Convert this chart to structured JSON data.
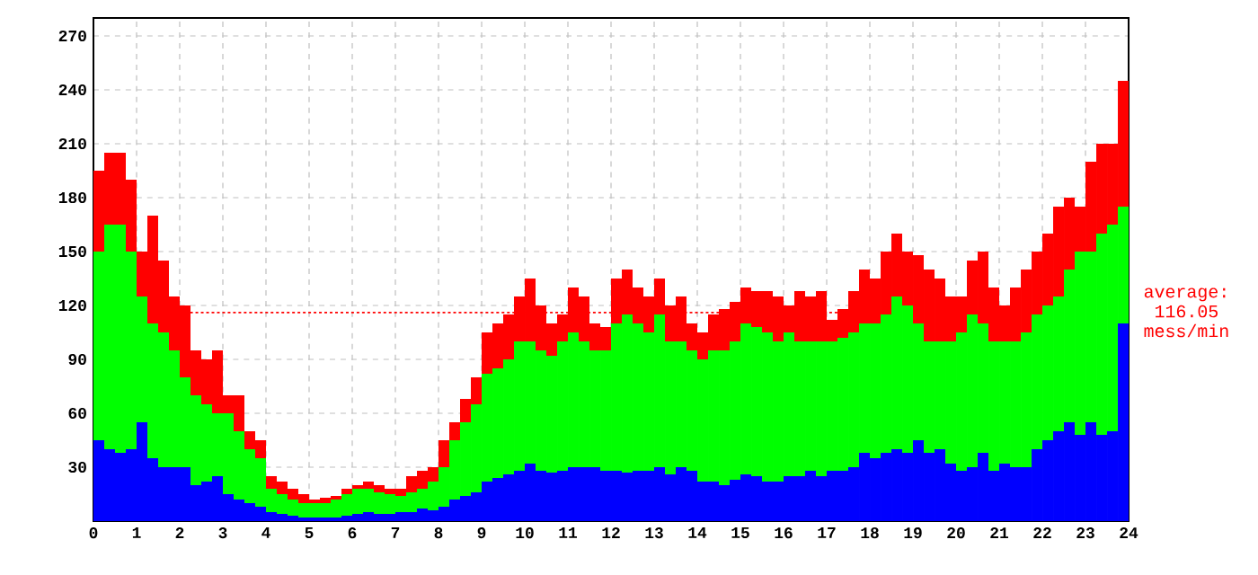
{
  "chart_data": {
    "type": "bar",
    "stacked": true,
    "x": [
      0.125,
      0.375,
      0.625,
      0.875,
      1.125,
      1.375,
      1.625,
      1.875,
      2.125,
      2.375,
      2.625,
      2.875,
      3.125,
      3.375,
      3.625,
      3.875,
      4.125,
      4.375,
      4.625,
      4.875,
      5.125,
      5.375,
      5.625,
      5.875,
      6.125,
      6.375,
      6.625,
      6.875,
      7.125,
      7.375,
      7.625,
      7.875,
      8.125,
      8.375,
      8.625,
      8.875,
      9.125,
      9.375,
      9.625,
      9.875,
      10.125,
      10.375,
      10.625,
      10.875,
      11.125,
      11.375,
      11.625,
      11.875,
      12.125,
      12.375,
      12.625,
      12.875,
      13.125,
      13.375,
      13.625,
      13.875,
      14.125,
      14.375,
      14.625,
      14.875,
      15.125,
      15.375,
      15.625,
      15.875,
      16.125,
      16.375,
      16.625,
      16.875,
      17.125,
      17.375,
      17.625,
      17.875,
      18.125,
      18.375,
      18.625,
      18.875,
      19.125,
      19.375,
      19.625,
      19.875,
      20.125,
      20.375,
      20.625,
      20.875,
      21.125,
      21.375,
      21.625,
      21.875,
      22.125,
      22.375,
      22.625,
      22.875,
      23.125,
      23.375,
      23.625,
      23.875
    ],
    "series": [
      {
        "color": "#0000ff",
        "values": [
          45,
          40,
          38,
          40,
          55,
          35,
          30,
          30,
          30,
          20,
          22,
          25,
          15,
          12,
          10,
          8,
          5,
          4,
          3,
          2,
          2,
          2,
          2,
          3,
          4,
          5,
          4,
          4,
          5,
          5,
          7,
          6,
          8,
          12,
          14,
          16,
          22,
          24,
          26,
          28,
          32,
          28,
          27,
          28,
          30,
          30,
          30,
          28,
          28,
          27,
          28,
          28,
          30,
          26,
          30,
          28,
          22,
          22,
          20,
          23,
          26,
          25,
          22,
          22,
          25,
          25,
          28,
          25,
          28,
          28,
          30,
          38,
          35,
          38,
          40,
          38,
          45,
          38,
          40,
          32,
          28,
          30,
          38,
          28,
          32,
          30,
          30,
          40,
          45,
          50,
          55,
          48,
          55,
          48,
          50,
          110
        ]
      },
      {
        "color": "#00ff00",
        "values": [
          105,
          125,
          127,
          110,
          70,
          75,
          75,
          65,
          50,
          50,
          43,
          35,
          45,
          38,
          30,
          27,
          13,
          11,
          9,
          8,
          8,
          8,
          10,
          12,
          14,
          13,
          12,
          11,
          9,
          11,
          11,
          16,
          22,
          33,
          41,
          49,
          60,
          61,
          64,
          72,
          68,
          67,
          65,
          72,
          75,
          70,
          65,
          67,
          82,
          88,
          82,
          77,
          85,
          74,
          70,
          67,
          68,
          73,
          75,
          77,
          84,
          83,
          83,
          78,
          80,
          75,
          72,
          75,
          72,
          74,
          75,
          72,
          75,
          77,
          85,
          82,
          65,
          62,
          60,
          68,
          77,
          85,
          72,
          72,
          68,
          70,
          75,
          75,
          75,
          75,
          85,
          102,
          95,
          112,
          115,
          65
        ]
      },
      {
        "color": "#ff0000",
        "values": [
          45,
          40,
          40,
          40,
          25,
          60,
          40,
          30,
          40,
          25,
          25,
          35,
          10,
          20,
          10,
          10,
          7,
          7,
          6,
          5,
          2,
          3,
          2,
          3,
          2,
          4,
          4,
          3,
          4,
          9,
          10,
          8,
          15,
          10,
          13,
          15,
          23,
          25,
          25,
          25,
          35,
          25,
          18,
          15,
          25,
          25,
          15,
          13,
          25,
          25,
          20,
          20,
          20,
          20,
          25,
          15,
          15,
          20,
          23,
          22,
          20,
          20,
          23,
          25,
          15,
          28,
          25,
          28,
          12,
          16,
          23,
          30,
          25,
          35,
          35,
          30,
          38,
          40,
          35,
          25,
          20,
          30,
          40,
          30,
          20,
          30,
          35,
          35,
          40,
          50,
          40,
          25,
          50,
          50,
          45,
          70
        ]
      }
    ],
    "xlim": [
      0,
      24
    ],
    "xticks": [
      0,
      1,
      2,
      3,
      4,
      5,
      6,
      7,
      8,
      9,
      10,
      11,
      12,
      13,
      14,
      15,
      16,
      17,
      18,
      19,
      20,
      21,
      22,
      23,
      24
    ],
    "ylim": [
      0,
      280
    ],
    "yticks": [
      30,
      60,
      90,
      120,
      150,
      180,
      210,
      240,
      270
    ],
    "grid": true,
    "ref_lines": [
      {
        "axis": "y",
        "value": 116.05,
        "label": "average: 116.05 mess/min",
        "color": "#ff0000",
        "line_style": "dotted"
      }
    ]
  }
}
